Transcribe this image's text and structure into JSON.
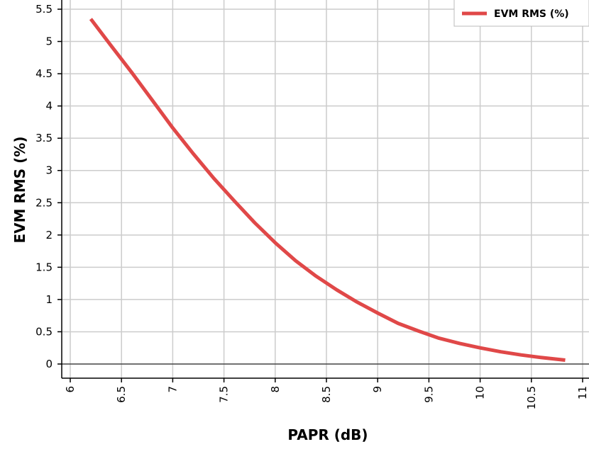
{
  "chart_data": {
    "type": "line",
    "xlabel": "PAPR (dB)",
    "ylabel": "EVM RMS  (%)",
    "xlim": [
      6,
      11
    ],
    "ylim": [
      0,
      5.5
    ],
    "x_ticks": [
      6,
      6.5,
      7,
      7.5,
      8,
      8.5,
      9,
      9.5,
      10,
      10.5,
      11
    ],
    "x_tick_labels": [
      "6",
      "6.5",
      "7",
      "7.5",
      "8",
      "8.5",
      "9",
      "9.5",
      "10",
      "10.5",
      "11"
    ],
    "y_ticks": [
      0,
      0.5,
      1,
      1.5,
      2,
      2.5,
      3,
      3.5,
      4,
      4.5,
      5,
      5.5
    ],
    "y_tick_labels": [
      "0",
      "0.5",
      "1",
      "1.5",
      "2",
      "2.5",
      "3",
      "3.5",
      "4",
      "4.5",
      "5",
      "5.5"
    ],
    "grid": true,
    "legend_position": "top-right",
    "series": [
      {
        "name": "EVM RMS  (%)",
        "color": "#e04848",
        "x": [
          6.2,
          6.4,
          6.6,
          6.8,
          7.0,
          7.2,
          7.4,
          7.6,
          7.8,
          8.0,
          8.2,
          8.4,
          8.6,
          8.8,
          9.0,
          9.2,
          9.4,
          9.6,
          9.8,
          10.0,
          10.2,
          10.4,
          10.6,
          10.83
        ],
        "y": [
          5.35,
          4.93,
          4.52,
          4.09,
          3.66,
          3.26,
          2.88,
          2.53,
          2.19,
          1.88,
          1.6,
          1.36,
          1.15,
          0.96,
          0.79,
          0.63,
          0.51,
          0.4,
          0.32,
          0.25,
          0.19,
          0.14,
          0.1,
          0.06
        ]
      }
    ]
  }
}
